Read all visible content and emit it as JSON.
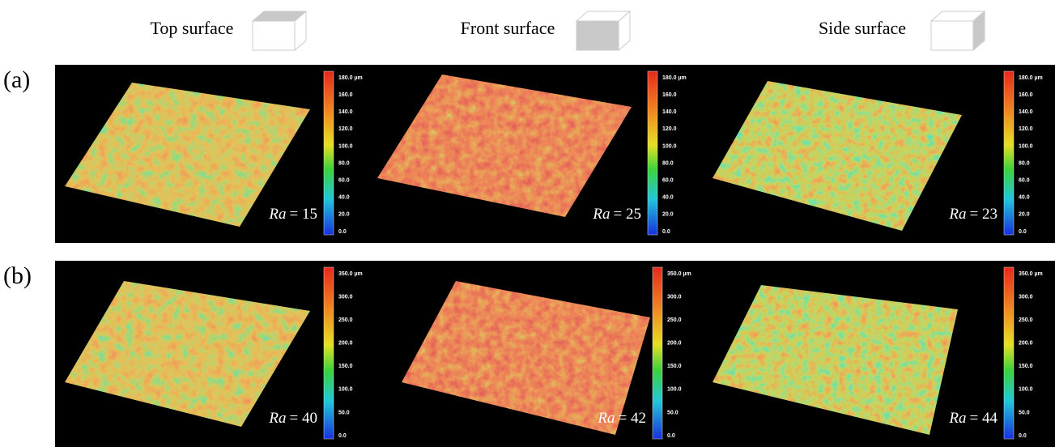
{
  "columns": [
    "Top surface",
    "Front surface",
    "Side surface"
  ],
  "rows": [
    {
      "label": "(a)",
      "colorbar": [
        "180.0 µm",
        "160.0",
        "140.0",
        "120.0",
        "100.0",
        "80.0",
        "60.0",
        "40.0",
        "20.0",
        "0.0"
      ],
      "panels": [
        {
          "symbol": "Ra",
          "value": "= 15"
        },
        {
          "symbol": "Ra",
          "value": "= 25"
        },
        {
          "symbol": "Ra",
          "value": "= 23"
        }
      ]
    },
    {
      "label": "(b)",
      "colorbar": [
        "350.0 µm",
        "300.0",
        "250.0",
        "200.0",
        "150.0",
        "100.0",
        "50.0",
        "0.0"
      ],
      "panels": [
        {
          "symbol": "Ra",
          "value": "= 40"
        },
        {
          "symbol": "Ra",
          "value": "= 42"
        },
        {
          "symbol": "Ra",
          "value": "= 44"
        }
      ]
    }
  ]
}
